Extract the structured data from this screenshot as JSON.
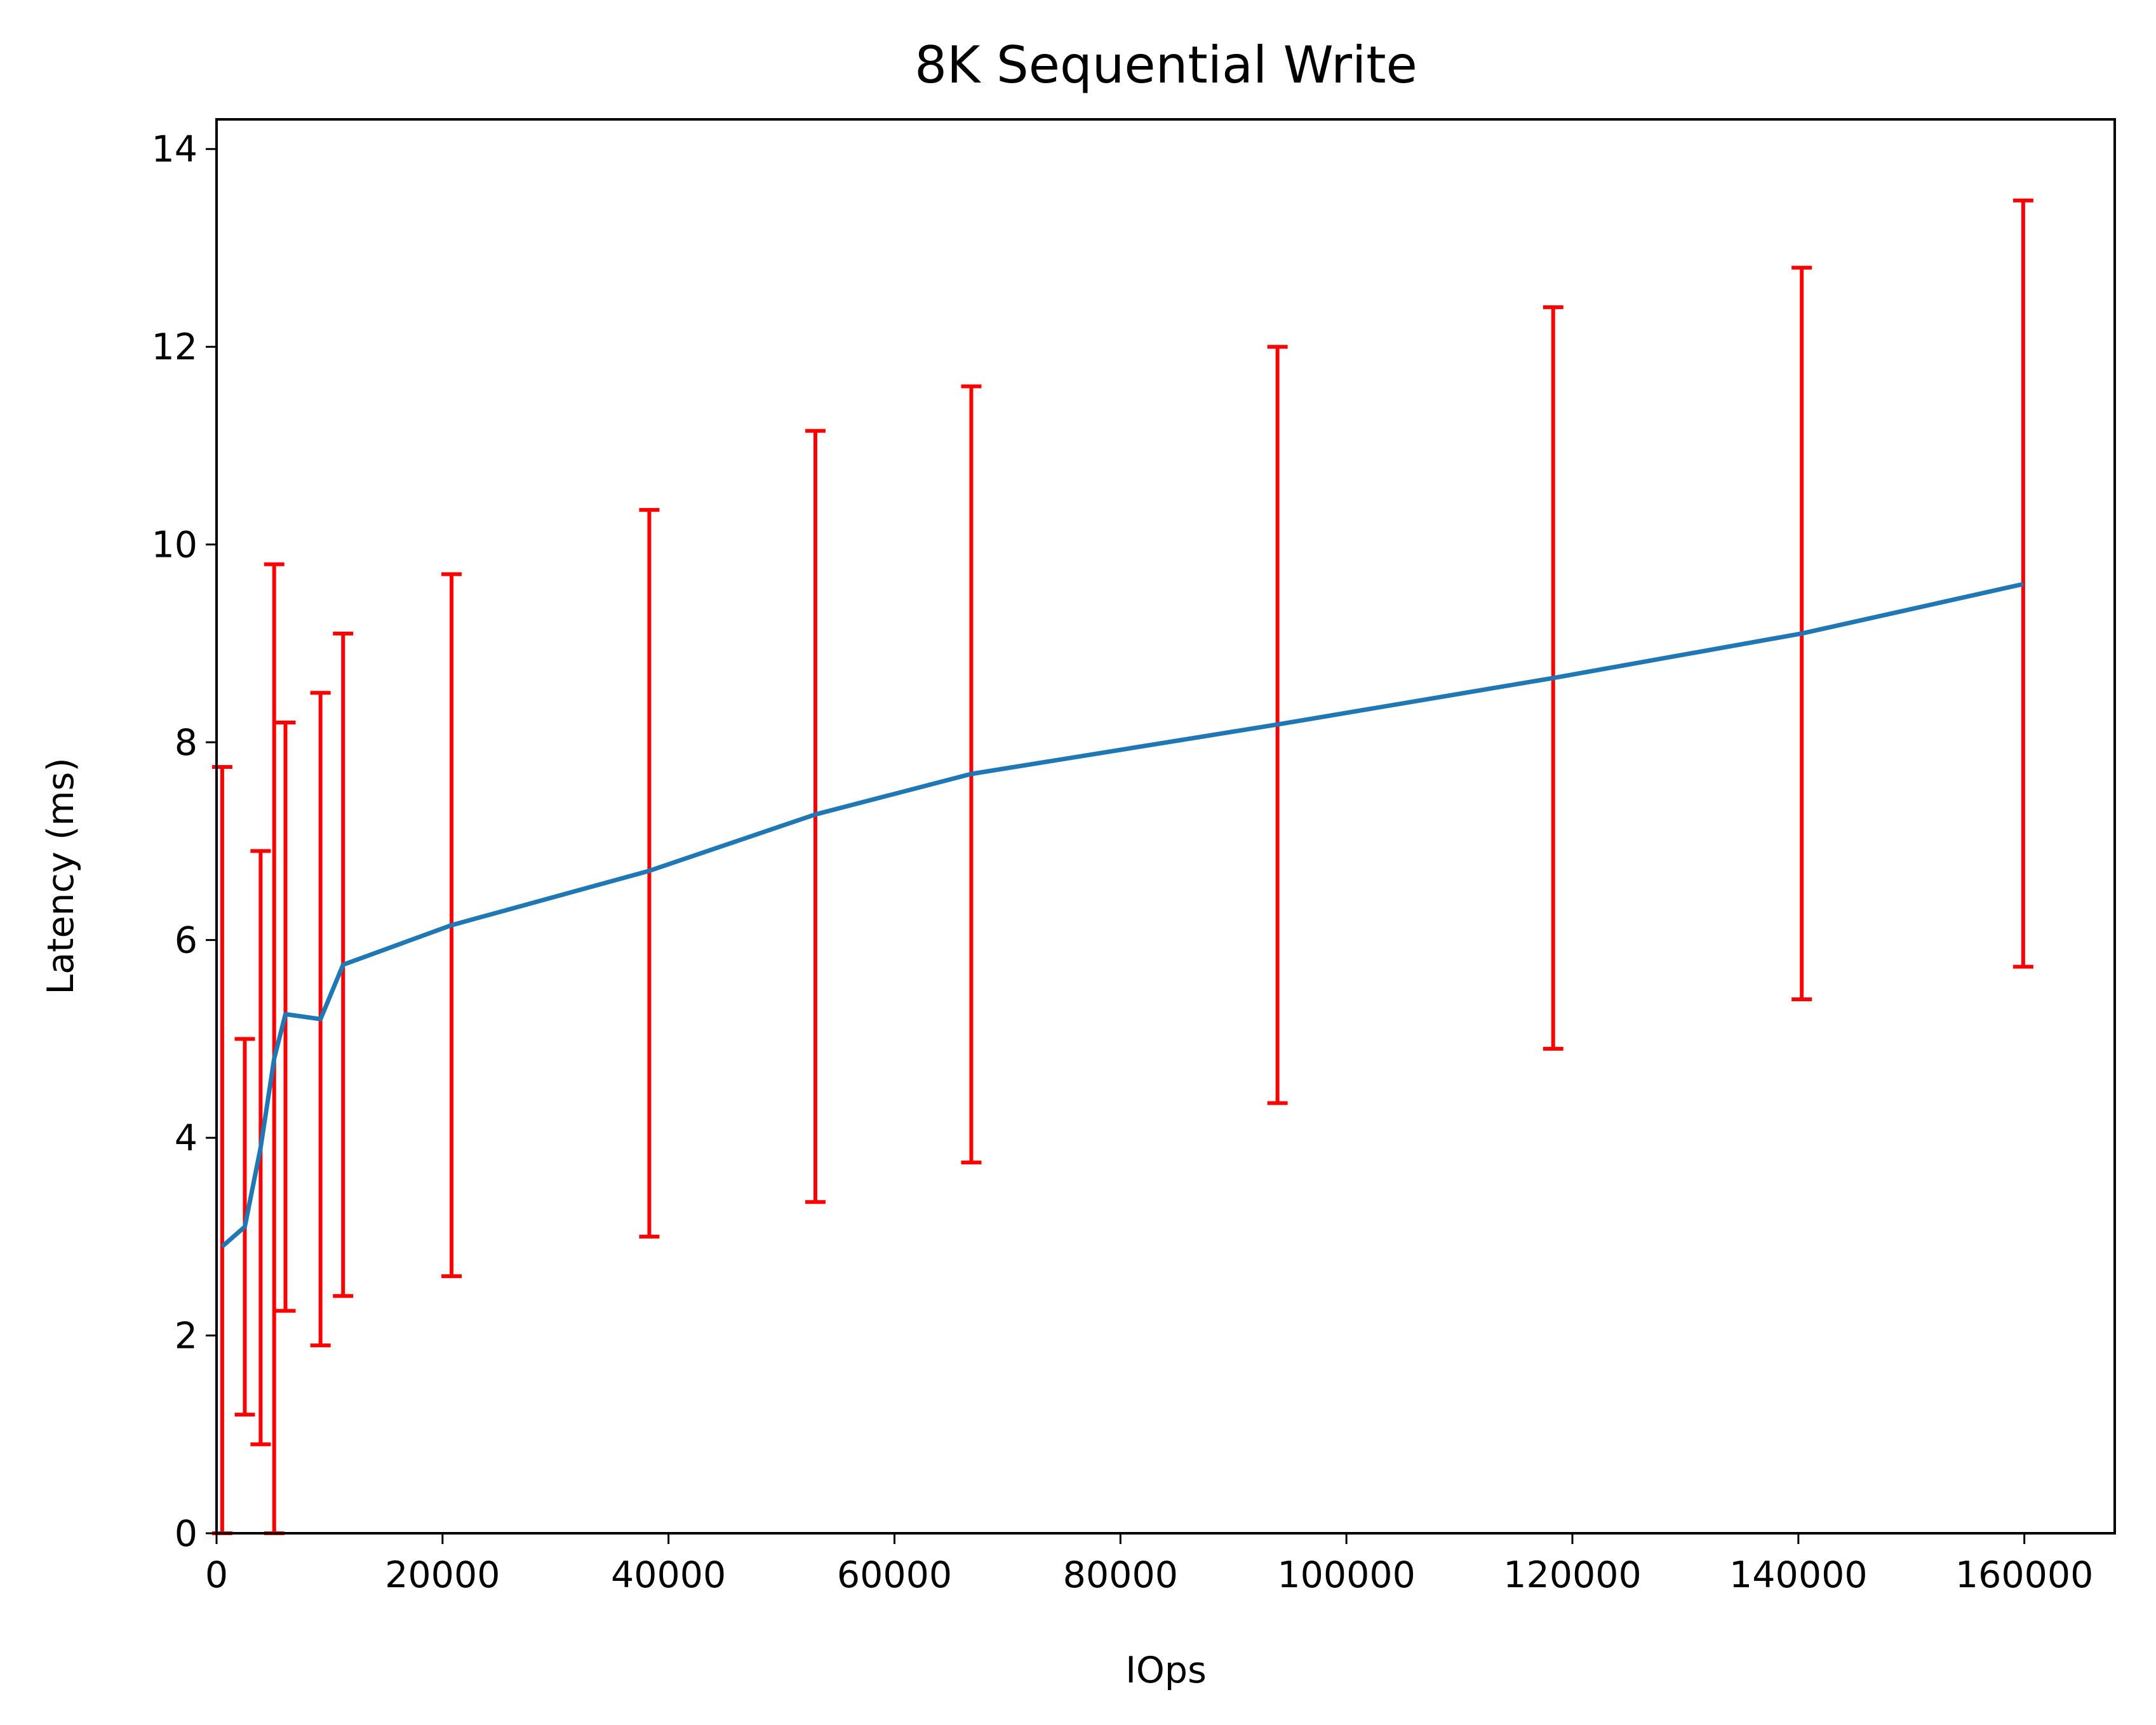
{
  "chart_data": {
    "type": "line",
    "title": "8K  Sequential Write",
    "xlabel": "IOps",
    "ylabel": "Latency (ms)",
    "xlim": [
      0,
      168000
    ],
    "ylim": [
      0,
      14.3
    ],
    "x_ticks": [
      0,
      20000,
      40000,
      60000,
      80000,
      100000,
      120000,
      140000,
      160000
    ],
    "x_tick_labels": [
      "0",
      "20000",
      "40000",
      "60000",
      "80000",
      "100000",
      "120000",
      "140000",
      "160000"
    ],
    "y_ticks": [
      0,
      2,
      4,
      6,
      8,
      10,
      12,
      14
    ],
    "y_tick_labels": [
      "0",
      "2",
      "4",
      "6",
      "8",
      "10",
      "12",
      "14"
    ],
    "grid": false,
    "legend": "none",
    "series": [
      {
        "color": "#1f77b4",
        "errorbar_color": "#ff0000",
        "points": [
          {
            "x": 500,
            "y": 2.9,
            "ylow": 0.0,
            "yhigh": 7.75
          },
          {
            "x": 2500,
            "y": 3.1,
            "ylow": 1.2,
            "yhigh": 5.0
          },
          {
            "x": 3900,
            "y": 3.9,
            "ylow": 0.9,
            "yhigh": 6.9
          },
          {
            "x": 5100,
            "y": 4.8,
            "ylow": 0.0,
            "yhigh": 9.8
          },
          {
            "x": 6100,
            "y": 5.25,
            "ylow": 2.25,
            "yhigh": 8.2
          },
          {
            "x": 9200,
            "y": 5.2,
            "ylow": 1.9,
            "yhigh": 8.5
          },
          {
            "x": 11200,
            "y": 5.75,
            "ylow": 2.4,
            "yhigh": 9.1
          },
          {
            "x": 20800,
            "y": 6.15,
            "ylow": 2.6,
            "yhigh": 9.7
          },
          {
            "x": 38300,
            "y": 6.7,
            "ylow": 3.0,
            "yhigh": 10.35
          },
          {
            "x": 53000,
            "y": 7.27,
            "ylow": 3.35,
            "yhigh": 11.15
          },
          {
            "x": 66800,
            "y": 7.68,
            "ylow": 3.75,
            "yhigh": 11.6
          },
          {
            "x": 93900,
            "y": 8.18,
            "ylow": 4.35,
            "yhigh": 12.0
          },
          {
            "x": 118300,
            "y": 8.65,
            "ylow": 4.9,
            "yhigh": 12.4
          },
          {
            "x": 140300,
            "y": 9.1,
            "ylow": 5.4,
            "yhigh": 12.8
          },
          {
            "x": 159900,
            "y": 9.6,
            "ylow": 5.73,
            "yhigh": 13.48
          }
        ]
      }
    ]
  }
}
